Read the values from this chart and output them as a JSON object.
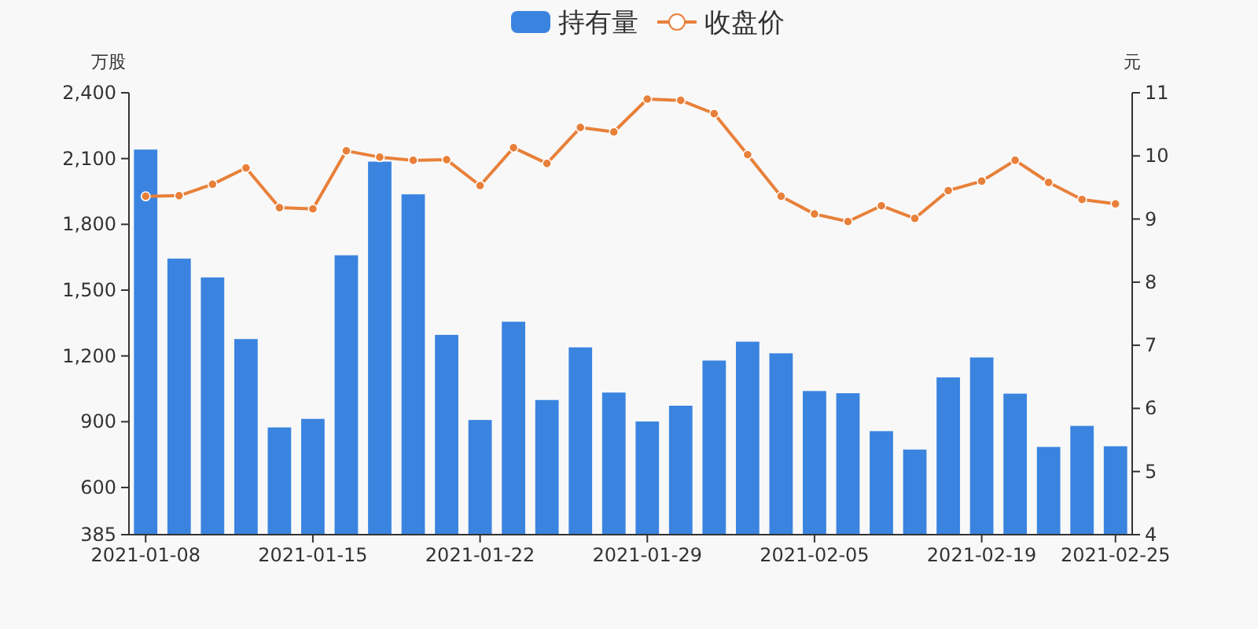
{
  "chart_data": {
    "type": "bar",
    "categories": [
      "2021-01-08",
      null,
      null,
      null,
      null,
      "2021-01-15",
      null,
      null,
      null,
      null,
      "2021-01-22",
      null,
      null,
      null,
      null,
      "2021-01-29",
      null,
      null,
      null,
      null,
      "2021-02-05",
      null,
      null,
      null,
      null,
      "2021-02-19",
      null,
      null,
      null,
      "2021-02-25"
    ],
    "series": [
      {
        "name": "持有量",
        "color": "#3a84e0",
        "values": [
          2141,
          1644,
          1558,
          1277,
          874,
          913,
          1659,
          2086,
          1937,
          1296,
          908,
          1356,
          999,
          1239,
          1033,
          901,
          973,
          1179,
          1265,
          1212,
          1040,
          1030,
          857,
          773,
          1102,
          1193,
          1028,
          785,
          881,
          788
        ]
      },
      {
        "name": "收盘价",
        "type": "line",
        "axis": "y2",
        "color": "#e8803a",
        "marker": "circle",
        "values": [
          9.36,
          9.37,
          9.55,
          9.81,
          9.18,
          9.16,
          10.08,
          9.98,
          9.93,
          9.94,
          9.53,
          10.13,
          9.88,
          10.45,
          10.38,
          10.9,
          10.88,
          10.67,
          10.02,
          9.36,
          9.08,
          8.96,
          9.21,
          9.01,
          9.45,
          9.6,
          9.93,
          9.58,
          9.31,
          9.24
        ]
      }
    ],
    "ylabel": "万股",
    "y2label": "元",
    "ylim": [
      385,
      2400
    ],
    "yticks": [
      {
        "value": 385,
        "label": "385"
      },
      {
        "value": 600,
        "label": "600"
      },
      {
        "value": 900,
        "label": "900"
      },
      {
        "value": 1200,
        "label": "1,200"
      },
      {
        "value": 1500,
        "label": "1,500"
      },
      {
        "value": 1800,
        "label": "1,800"
      },
      {
        "value": 2100,
        "label": "2,100"
      },
      {
        "value": 2400,
        "label": "2,400"
      }
    ],
    "y2lim": [
      4,
      11
    ],
    "y2ticks": [
      4,
      5,
      6,
      7,
      8,
      9,
      10,
      11
    ],
    "legend": "top",
    "grid": false
  }
}
